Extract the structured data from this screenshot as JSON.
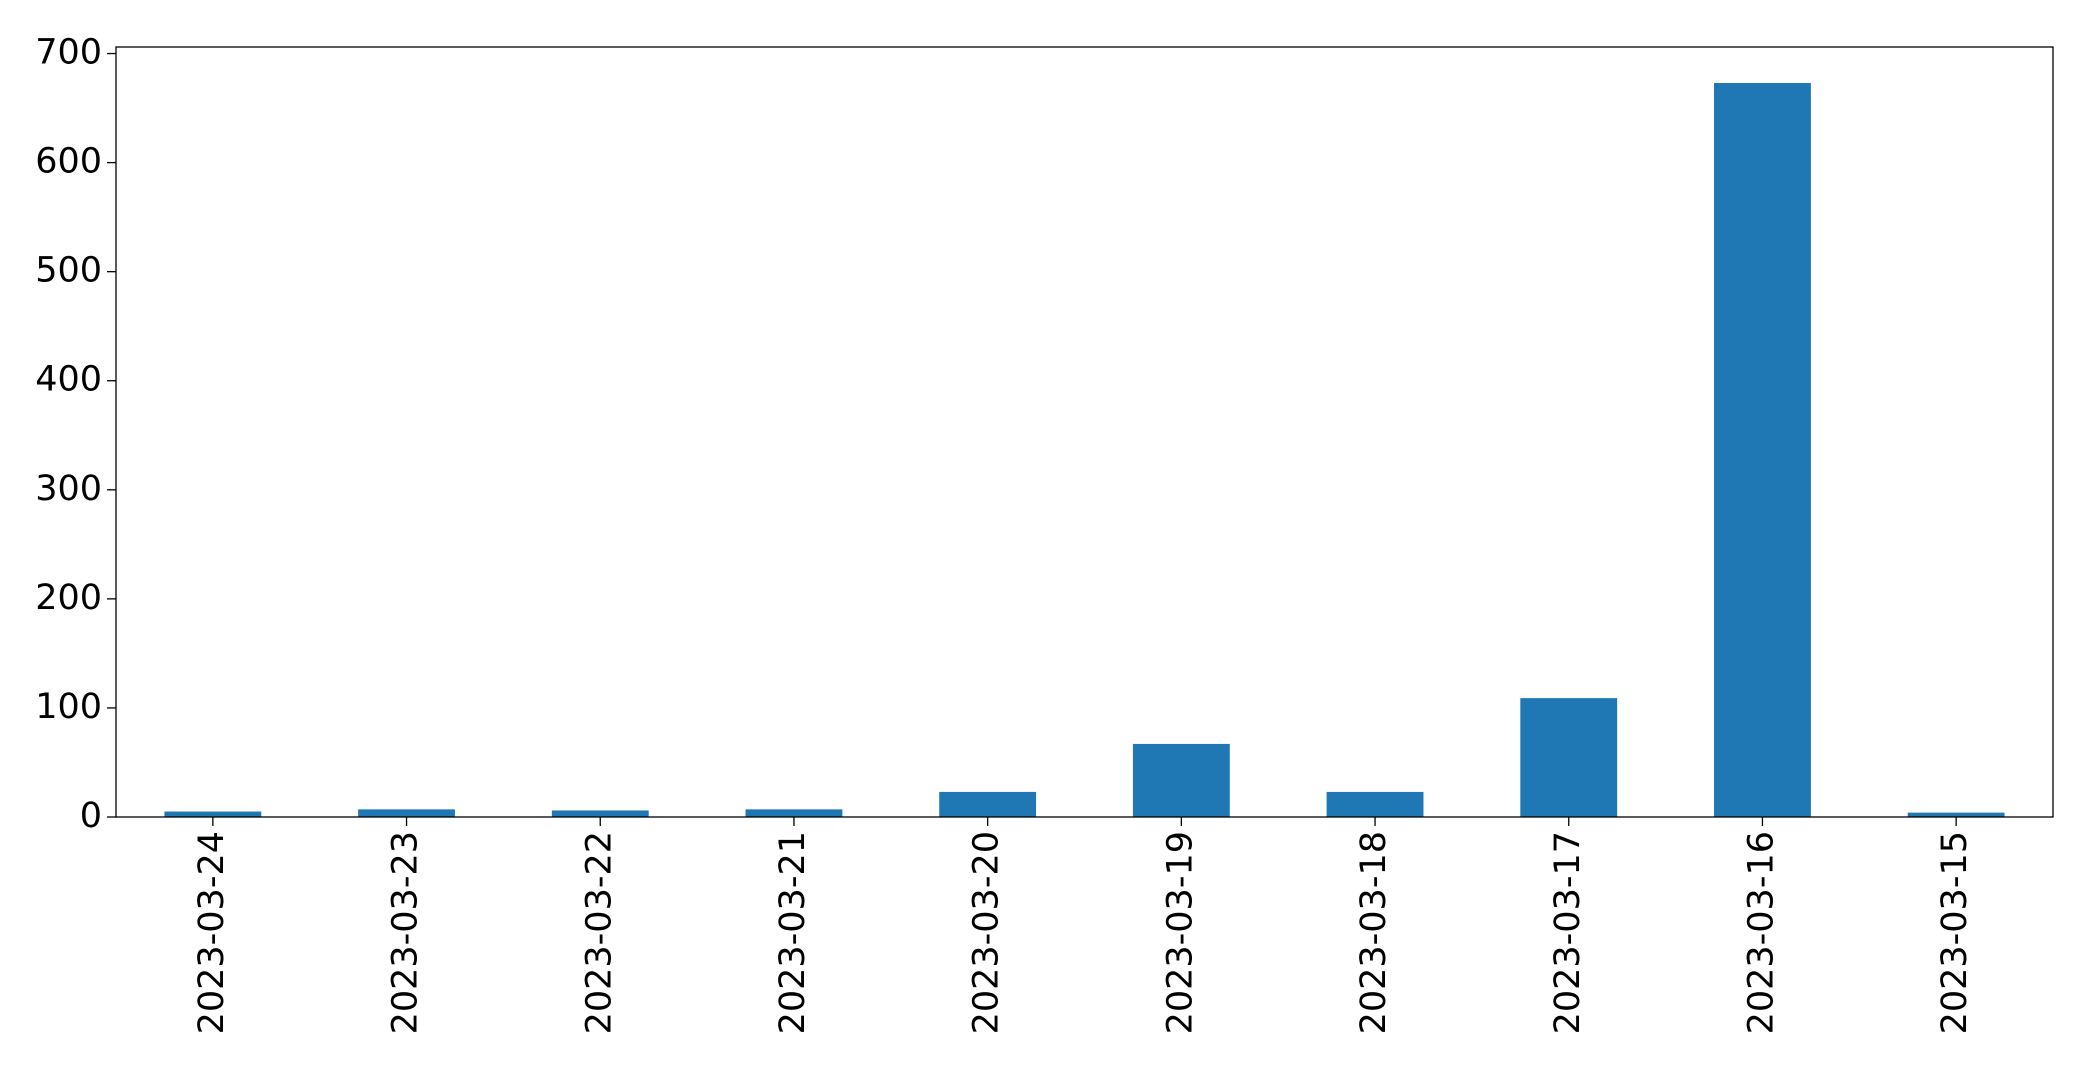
{
  "chart_data": {
    "type": "bar",
    "categories": [
      "2023-03-24",
      "2023-03-23",
      "2023-03-22",
      "2023-03-21",
      "2023-03-20",
      "2023-03-19",
      "2023-03-18",
      "2023-03-17",
      "2023-03-16",
      "2023-03-15"
    ],
    "values": [
      5,
      7,
      6,
      7,
      23,
      67,
      23,
      109,
      673,
      4
    ],
    "color": "#1f77b4",
    "ylim": [
      0,
      706
    ],
    "yticks": [
      0,
      100,
      200,
      300,
      400,
      500,
      600,
      700
    ],
    "grid": false
  }
}
